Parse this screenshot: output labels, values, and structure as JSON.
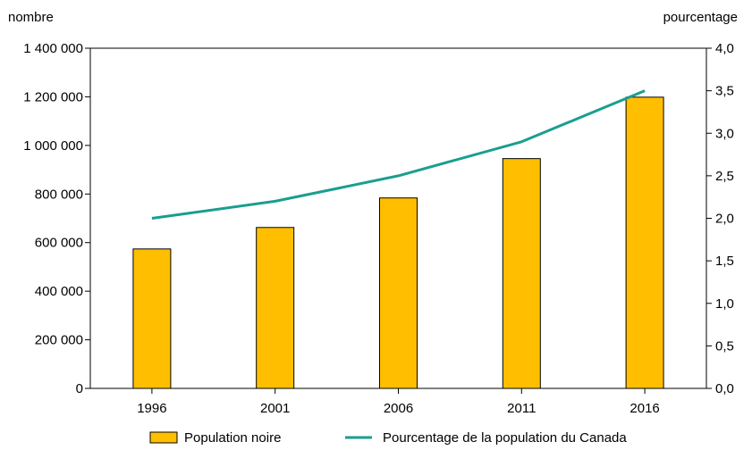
{
  "chart_data": {
    "type": "bar",
    "categories": [
      "1996",
      "2001",
      "2006",
      "2011",
      "2016"
    ],
    "series": [
      {
        "name": "Population noire",
        "type": "bar",
        "axis": "left",
        "color": "#FFBF00",
        "values": [
          573860,
          662215,
          783795,
          945665,
          1198540
        ]
      },
      {
        "name": "Pourcentage de la population du Canada",
        "type": "line",
        "axis": "right",
        "color": "#1A9E8F",
        "values": [
          2.0,
          2.2,
          2.5,
          2.9,
          3.5
        ]
      }
    ],
    "ylabel_left": "nombre",
    "ylabel_right": "pourcentage",
    "ylim_left": [
      0,
      1400000
    ],
    "ylim_right": [
      0,
      4.0
    ],
    "yticks_left": [
      "0",
      "200 000",
      "400 000",
      "600 000",
      "800 000",
      "1 000 000",
      "1 200 000",
      "1 400 000"
    ],
    "yticks_right": [
      "0,0",
      "0,5",
      "1,0",
      "1,5",
      "2,0",
      "2,5",
      "3,0",
      "3,5",
      "4,0"
    ],
    "grid": false,
    "legend_position": "bottom"
  }
}
